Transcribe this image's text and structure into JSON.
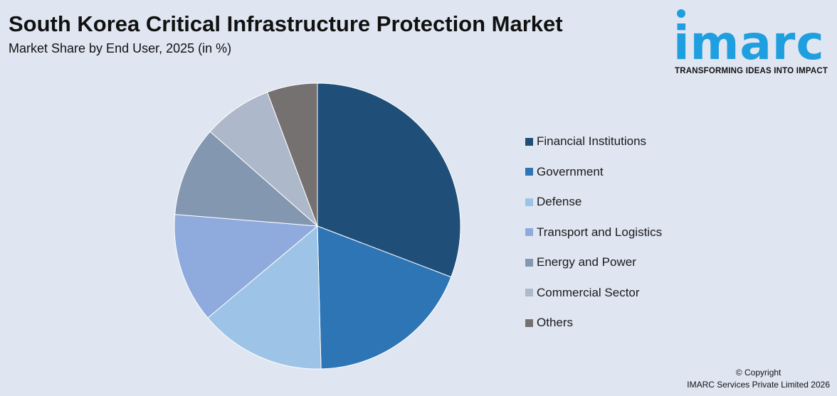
{
  "header": {
    "title": "South Korea Critical Infrastructure Protection Market",
    "subtitle": "Market Share by End User, 2025 (in %)"
  },
  "logo": {
    "wordmark": "imarc",
    "tagline": "TRANSFORMING IDEAS INTO IMPACT",
    "color": "#1f9fe0"
  },
  "footer": {
    "copyright_line1": "© Copyright",
    "copyright_line2": "IMARC Services Private Limited 2026"
  },
  "chart_data": {
    "type": "pie",
    "title": "South Korea Critical Infrastructure Protection Market",
    "subtitle": "Market Share by End User, 2025 (in %)",
    "legend_position": "right",
    "categories": [
      "Financial Institutions",
      "Government",
      "Defense",
      "Transport and Logistics",
      "Energy and Power",
      "Commercial Sector",
      "Others"
    ],
    "values": [
      30.8,
      18.8,
      14.3,
      12.4,
      10.2,
      7.8,
      5.7
    ],
    "colors": [
      "#1f4e79",
      "#2e75b6",
      "#9dc3e6",
      "#8faadc",
      "#8497b0",
      "#adb9ca",
      "#767171"
    ]
  }
}
